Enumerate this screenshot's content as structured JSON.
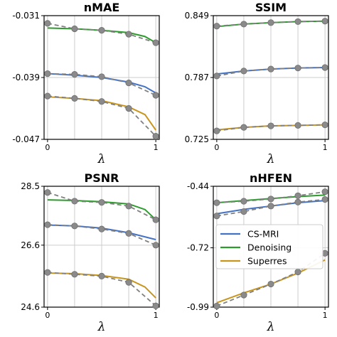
{
  "colors": {
    "cs_mri": "#4472c4",
    "denoising": "#2e9b2e",
    "superres": "#c8961e",
    "reference": "#808080",
    "marker": "#8a8a8a",
    "grid": "#cccccc"
  },
  "legend": {
    "items": [
      {
        "label": "CS-MRI",
        "color": "#4472c4"
      },
      {
        "label": "Denoising",
        "color": "#2e9b2e"
      },
      {
        "label": "Superres",
        "color": "#c8961e"
      }
    ]
  },
  "chart_data": [
    {
      "type": "line",
      "title": "nMAE",
      "xlabel": "λ",
      "xlim": [
        0,
        1
      ],
      "ylim": [
        -0.047,
        -0.031
      ],
      "yticks": [
        "-0.031",
        "-0.039",
        "-0.047"
      ],
      "yticks_values": [
        -0.031,
        -0.039,
        -0.047
      ],
      "xticks": [
        "0",
        "1"
      ],
      "xticks_values": [
        0,
        1
      ],
      "grid": true,
      "markers_x": [
        0,
        0.25,
        0.5,
        0.75,
        1.0
      ],
      "series": [
        {
          "key": "cs_mri",
          "curve": [
            [
              0,
              -0.0385
            ],
            [
              0.25,
              -0.0387
            ],
            [
              0.5,
              -0.039
            ],
            [
              0.75,
              -0.0396
            ],
            [
              0.9,
              -0.0402
            ],
            [
              1.0,
              -0.041
            ]
          ],
          "markers": [
            -0.0385,
            -0.0386,
            -0.0389,
            -0.0397,
            -0.0413
          ]
        },
        {
          "key": "denoising",
          "curve": [
            [
              0,
              -0.0326
            ],
            [
              0.25,
              -0.0327
            ],
            [
              0.5,
              -0.0329
            ],
            [
              0.75,
              -0.0332
            ],
            [
              0.9,
              -0.0337
            ],
            [
              1.0,
              -0.0345
            ]
          ],
          "markers": [
            -0.032,
            -0.0327,
            -0.0329,
            -0.0334,
            -0.0345
          ]
        },
        {
          "key": "superres",
          "curve": [
            [
              0,
              -0.0415
            ],
            [
              0.25,
              -0.0417
            ],
            [
              0.5,
              -0.042
            ],
            [
              0.75,
              -0.0428
            ],
            [
              0.9,
              -0.0438
            ],
            [
              1.0,
              -0.0458
            ]
          ],
          "markers": [
            -0.0414,
            -0.0417,
            -0.0421,
            -0.043,
            -0.0466
          ]
        }
      ]
    },
    {
      "type": "line",
      "title": "SSIM",
      "xlabel": "λ",
      "xlim": [
        0,
        1
      ],
      "ylim": [
        0.725,
        0.849
      ],
      "yticks": [
        "0.849",
        "0.787",
        "0.725"
      ],
      "yticks_values": [
        0.849,
        0.787,
        0.725
      ],
      "xticks": [
        "0",
        "1"
      ],
      "xticks_values": [
        0,
        1
      ],
      "grid": true,
      "markers_x": [
        0,
        0.25,
        0.5,
        0.75,
        1.0
      ],
      "series": [
        {
          "key": "cs_mri",
          "curve": [
            [
              0,
              0.7905
            ],
            [
              0.25,
              0.7935
            ],
            [
              0.5,
              0.7955
            ],
            [
              0.75,
              0.7965
            ],
            [
              1.0,
              0.797
            ]
          ],
          "markers": [
            0.7885,
            0.7935,
            0.7955,
            0.7965,
            0.797
          ]
        },
        {
          "key": "denoising",
          "curve": [
            [
              0,
              0.838
            ],
            [
              0.25,
              0.8405
            ],
            [
              0.5,
              0.842
            ],
            [
              0.75,
              0.843
            ],
            [
              1.0,
              0.8435
            ]
          ],
          "markers": [
            0.8385,
            0.8405,
            0.842,
            0.843,
            0.8435
          ]
        },
        {
          "key": "superres",
          "curve": [
            [
              0,
              0.7345
            ],
            [
              0.25,
              0.737
            ],
            [
              0.5,
              0.7385
            ],
            [
              0.75,
              0.739
            ],
            [
              1.0,
              0.7395
            ]
          ],
          "markers": [
            0.7335,
            0.737,
            0.7385,
            0.739,
            0.7395
          ]
        }
      ]
    },
    {
      "type": "line",
      "title": "PSNR",
      "xlabel": "λ",
      "xlim": [
        0,
        1
      ],
      "ylim": [
        24.6,
        28.5
      ],
      "yticks": [
        "28.5",
        "26.6",
        "24.6"
      ],
      "yticks_values": [
        28.5,
        26.6,
        24.6
      ],
      "xticks": [
        "0",
        "1"
      ],
      "xticks_values": [
        0,
        1
      ],
      "grid": true,
      "markers_x": [
        0,
        0.25,
        0.5,
        0.75,
        1.0
      ],
      "series": [
        {
          "key": "cs_mri",
          "curve": [
            [
              0,
              27.25
            ],
            [
              0.25,
              27.22
            ],
            [
              0.5,
              27.15
            ],
            [
              0.75,
              27.0
            ],
            [
              1.0,
              26.78
            ]
          ],
          "markers": [
            27.26,
            27.22,
            27.12,
            26.98,
            26.6
          ]
        },
        {
          "key": "denoising",
          "curve": [
            [
              0,
              28.06
            ],
            [
              0.25,
              28.04
            ],
            [
              0.5,
              28.0
            ],
            [
              0.75,
              27.93
            ],
            [
              0.9,
              27.75
            ],
            [
              1.0,
              27.42
            ]
          ],
          "markers": [
            28.3,
            28.02,
            27.98,
            27.86,
            27.42
          ]
        },
        {
          "key": "superres",
          "curve": [
            [
              0,
              25.7
            ],
            [
              0.25,
              25.68
            ],
            [
              0.5,
              25.62
            ],
            [
              0.75,
              25.5
            ],
            [
              0.9,
              25.25
            ],
            [
              1.0,
              24.9
            ]
          ],
          "markers": [
            25.72,
            25.66,
            25.6,
            25.4,
            24.64
          ]
        }
      ]
    },
    {
      "type": "line",
      "title": "nHFEN",
      "xlabel": "λ",
      "xlim": [
        0,
        1
      ],
      "ylim": [
        -0.99,
        -0.44
      ],
      "yticks": [
        "-0.44",
        "-0.72",
        "-0.99"
      ],
      "yticks_values": [
        -0.44,
        -0.72,
        -0.99
      ],
      "xticks": [
        "0",
        "1"
      ],
      "xticks_values": [
        0,
        1
      ],
      "grid": true,
      "markers_x": [
        0,
        0.25,
        0.5,
        0.75,
        1.0
      ],
      "series": [
        {
          "key": "cs_mri",
          "curve": [
            [
              0,
              -0.565
            ],
            [
              0.25,
              -0.545
            ],
            [
              0.5,
              -0.53
            ],
            [
              0.75,
              -0.515
            ],
            [
              1.0,
              -0.505
            ]
          ],
          "markers": [
            -0.575,
            -0.555,
            -0.53,
            -0.512,
            -0.5
          ]
        },
        {
          "key": "denoising",
          "curve": [
            [
              0,
              -0.515
            ],
            [
              0.25,
              -0.505
            ],
            [
              0.5,
              -0.496
            ],
            [
              0.75,
              -0.487
            ],
            [
              1.0,
              -0.48
            ]
          ],
          "markers": [
            -0.515,
            -0.508,
            -0.498,
            -0.483,
            -0.465
          ]
        },
        {
          "key": "superres",
          "curve": [
            [
              0,
              -0.97
            ],
            [
              0.25,
              -0.925
            ],
            [
              0.5,
              -0.885
            ],
            [
              0.75,
              -0.835
            ],
            [
              1.0,
              -0.775
            ]
          ],
          "markers": [
            -0.985,
            -0.935,
            -0.885,
            -0.83,
            -0.745
          ]
        }
      ]
    }
  ]
}
